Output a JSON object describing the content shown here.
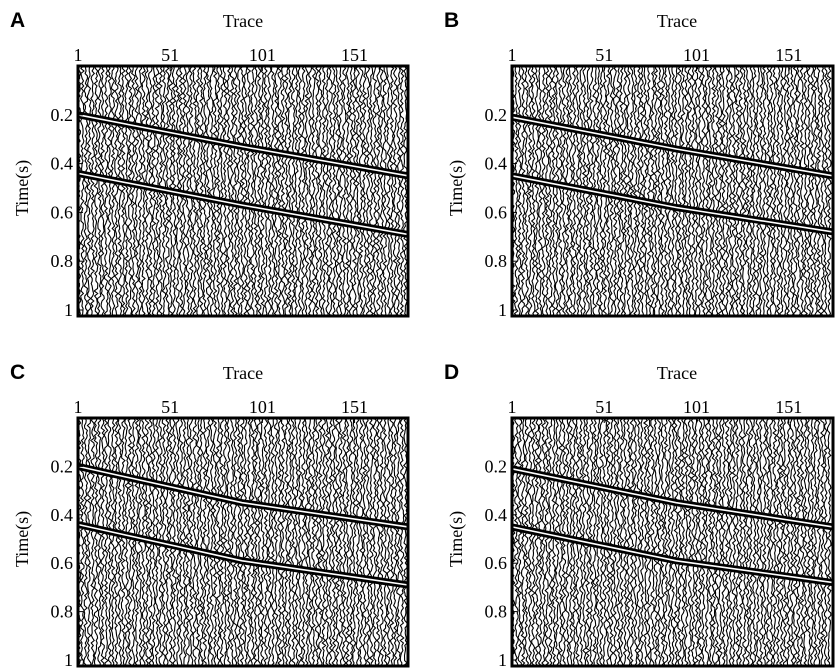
{
  "chart_data": [
    {
      "type": "seismic",
      "title": "A",
      "xlabel": "Trace",
      "ylabel": "Time(s)",
      "xlim": [
        1,
        180
      ],
      "xticks": [
        1,
        51,
        101,
        151
      ],
      "ylim": [
        0,
        1
      ],
      "yticks": [
        0.2,
        0.4,
        0.6,
        0.8,
        1
      ],
      "x": [
        1,
        90,
        180
      ],
      "series": [
        {
          "color": "#000000",
          "values": [
            0.2,
            0.33,
            0.45
          ]
        },
        {
          "color": "#000000",
          "values": [
            0.44,
            0.57,
            0.69
          ]
        }
      ]
    },
    {
      "type": "seismic",
      "title": "B",
      "xlabel": "Trace",
      "ylabel": "Time(s)",
      "xlim": [
        1,
        175
      ],
      "xticks": [
        1,
        51,
        101,
        151
      ],
      "ylim": [
        0,
        1
      ],
      "yticks": [
        0.2,
        0.4,
        0.6,
        0.8,
        1
      ],
      "x": [
        1,
        90,
        175
      ],
      "series": [
        {
          "color": "#000000",
          "values": [
            0.21,
            0.34,
            0.45
          ]
        },
        {
          "color": "#000000",
          "values": [
            0.45,
            0.58,
            0.68
          ]
        }
      ]
    },
    {
      "type": "seismic",
      "title": "C",
      "xlabel": "Trace",
      "ylabel": "Time(s)",
      "xlim": [
        1,
        180
      ],
      "xticks": [
        1,
        51,
        101,
        151
      ],
      "ylim": [
        0,
        1
      ],
      "yticks": [
        0.2,
        0.4,
        0.6,
        0.8,
        1
      ],
      "x": [
        1,
        90,
        180
      ],
      "series": [
        {
          "color": "#000000",
          "values": [
            0.2,
            0.35,
            0.45
          ]
        },
        {
          "color": "#000000",
          "values": [
            0.44,
            0.59,
            0.69
          ]
        }
      ]
    },
    {
      "type": "seismic",
      "title": "D",
      "xlabel": "Trace",
      "ylabel": "Time(s)",
      "xlim": [
        1,
        175
      ],
      "xticks": [
        1,
        51,
        101,
        151
      ],
      "ylim": [
        0,
        1
      ],
      "yticks": [
        0.2,
        0.4,
        0.6,
        0.8,
        1
      ],
      "x": [
        1,
        90,
        175
      ],
      "series": [
        {
          "color": "#000000",
          "values": [
            0.21,
            0.35,
            0.45
          ]
        },
        {
          "color": "#000000",
          "values": [
            0.45,
            0.59,
            0.68
          ]
        }
      ]
    }
  ]
}
